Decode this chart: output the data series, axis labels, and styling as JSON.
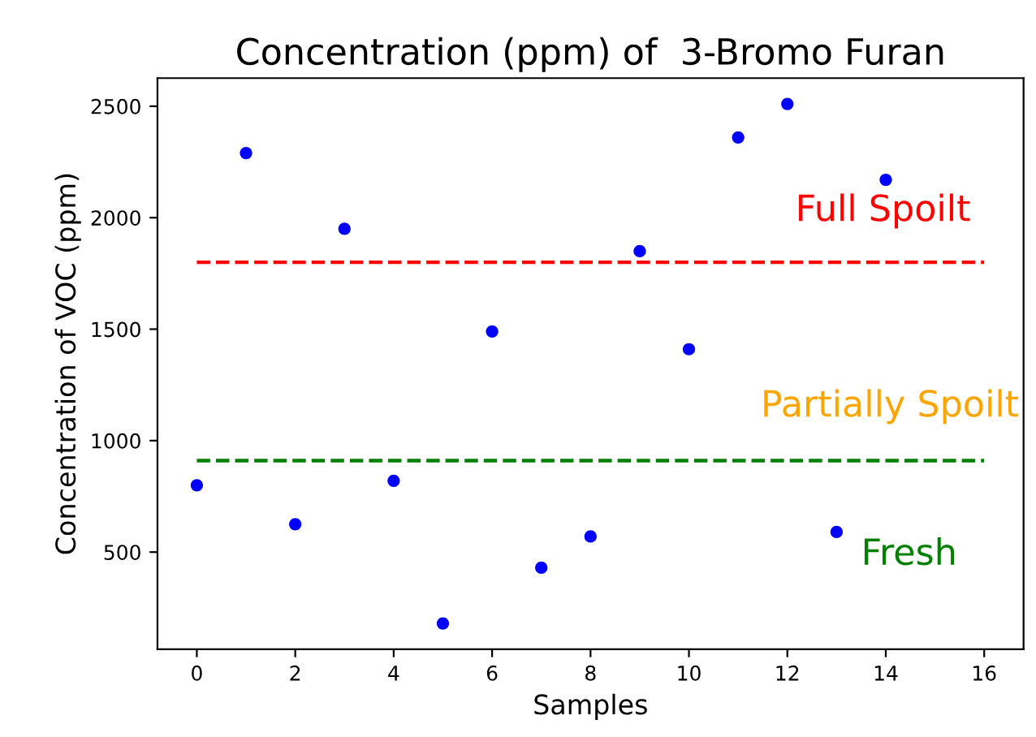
{
  "chart_data": {
    "type": "scatter",
    "title": "Concentration (ppm) of  3-Bromo Furan",
    "xlabel": "Samples",
    "ylabel": "Concentration of VOC (ppm)",
    "x": [
      0,
      1,
      2,
      3,
      4,
      5,
      6,
      7,
      8,
      9,
      10,
      11,
      12,
      13,
      14
    ],
    "series": [
      {
        "color": "#0000ff",
        "values": [
          800,
          2290,
          625,
          1950,
          820,
          180,
          1490,
          430,
          570,
          1850,
          1410,
          2360,
          2510,
          590,
          2170
        ]
      }
    ],
    "marker": "circle",
    "xlim": [
      -0.8,
      16.8
    ],
    "xticks": [
      0,
      2,
      4,
      6,
      8,
      10,
      12,
      14,
      16
    ],
    "ylim": [
      64,
      2626
    ],
    "yticks": [
      500,
      1000,
      1500,
      2000,
      2500
    ],
    "ref_lines": [
      {
        "axis": "y",
        "value": 1800,
        "label": "Full Spoilt",
        "color": "#ff0000",
        "line_style": "dashed"
      },
      {
        "axis": "y",
        "value": 910,
        "label": "Fresh",
        "color": "#008000",
        "line_style": "dashed"
      }
    ],
    "annotations": [
      "Partially Spoilt"
    ],
    "grid": false,
    "legend": false
  }
}
